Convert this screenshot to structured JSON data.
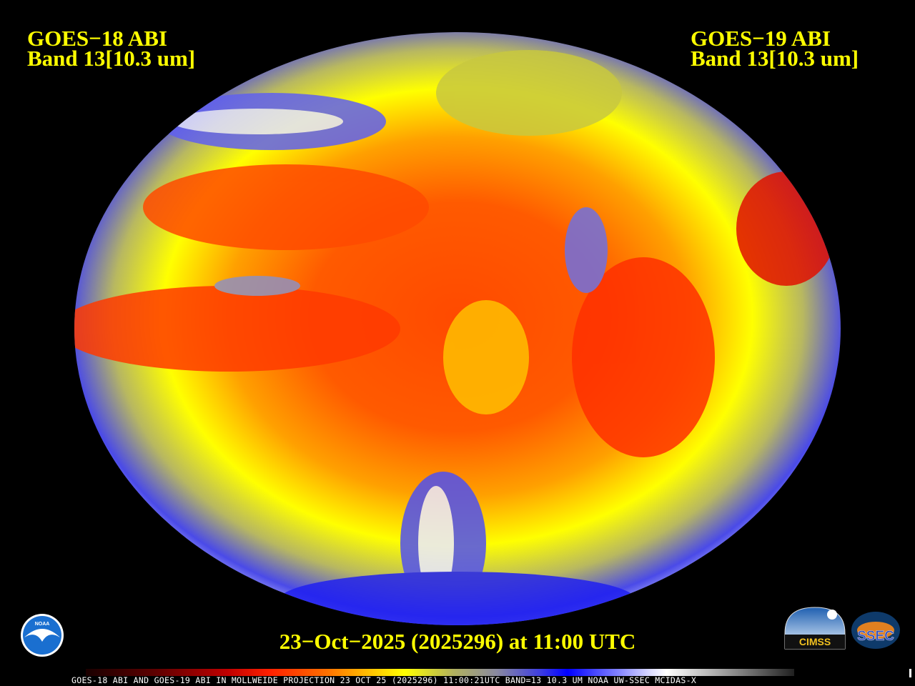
{
  "header": {
    "left": {
      "satellite": "GOES−18 ABI",
      "band": "Band 13[10.3 um]"
    },
    "right": {
      "satellite": "GOES−19 ABI",
      "band": "Band 13[10.3 um]"
    }
  },
  "timestamp": "23−Oct−2025 (2025296) at 11:00 UTC",
  "footer": {
    "caption": "GOES-18 ABI AND GOES-19 ABI IN MOLLWEIDE PROJECTION 23 OCT 25 (2025296) 11:00:21UTC BAND=13 10.3 UM NOAA UW-SSEC MCIDAS-X"
  },
  "logos": {
    "noaa": "NOAA",
    "cimss": "CIMSS",
    "ssec": "SSEC"
  },
  "colors": {
    "text": "#ffff00",
    "warm": "#ff3000",
    "mid": "#ffff00",
    "cold": "#0000ff",
    "coldest": "#ffffff"
  }
}
